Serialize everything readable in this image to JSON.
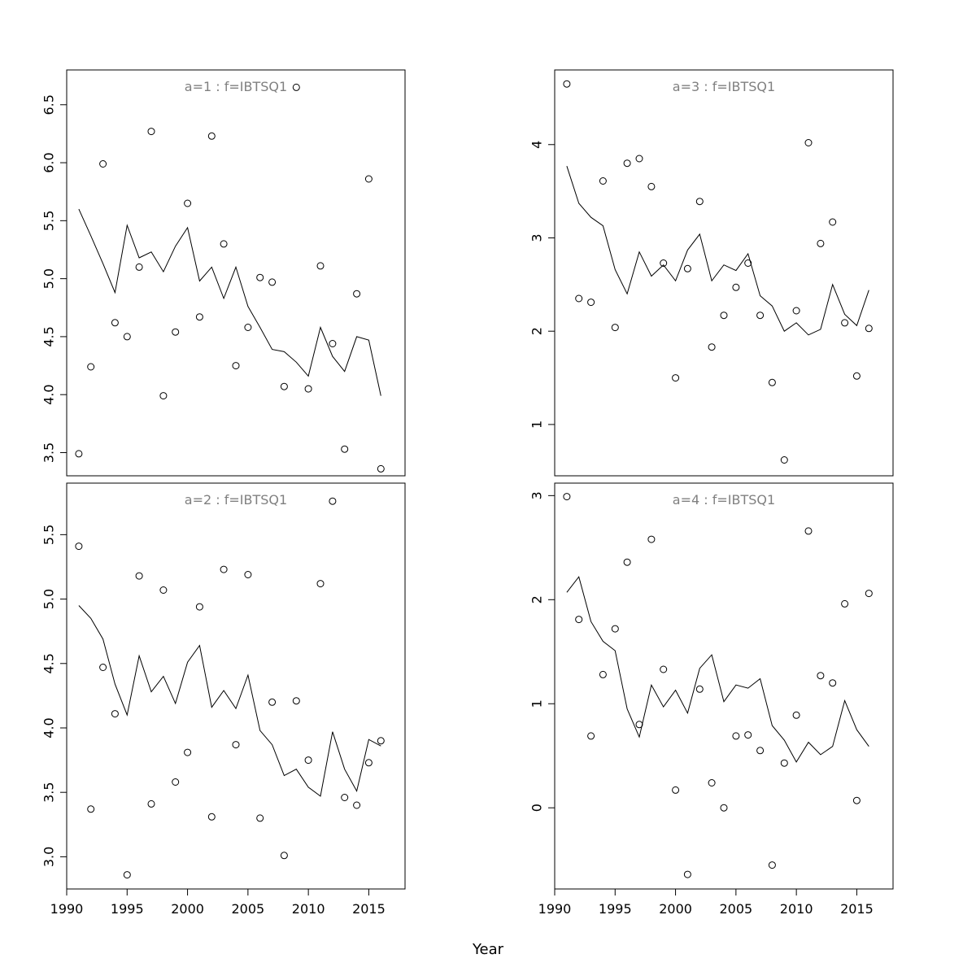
{
  "chart_data": {
    "type": "scatter",
    "xlabel": "Year",
    "x": [
      1991,
      1992,
      1993,
      1994,
      1995,
      1996,
      1997,
      1998,
      1999,
      2000,
      2001,
      2002,
      2003,
      2004,
      2005,
      2006,
      2007,
      2008,
      2009,
      2010,
      2011,
      2012,
      2013,
      2014,
      2015,
      2016
    ],
    "xlim": [
      1990,
      2018
    ],
    "xticks": [
      "1990",
      "1995",
      "2000",
      "2005",
      "2010",
      "2015"
    ],
    "xtick_values": [
      1990,
      1995,
      2000,
      2005,
      2010,
      2015
    ],
    "panels": [
      {
        "title": "a=1  :  f=IBTSQ1",
        "ylim": [
          3.3,
          6.8
        ],
        "yticks": [
          "3.5",
          "4.0",
          "4.5",
          "5.0",
          "5.5",
          "6.0",
          "6.5"
        ],
        "ytick_values": [
          3.5,
          4.0,
          4.5,
          5.0,
          5.5,
          6.0,
          6.5
        ],
        "points": [
          3.49,
          4.24,
          5.99,
          4.62,
          4.5,
          5.1,
          6.27,
          3.99,
          4.54,
          5.65,
          4.67,
          6.23,
          5.3,
          4.25,
          4.58,
          5.01,
          4.97,
          4.07,
          6.65,
          4.05,
          5.11,
          4.44,
          3.53,
          4.87,
          5.86,
          3.36
        ],
        "line": [
          5.6,
          5.37,
          5.13,
          4.88,
          5.46,
          5.18,
          5.23,
          5.06,
          5.28,
          5.44,
          4.98,
          5.1,
          4.83,
          5.1,
          4.76,
          4.58,
          4.39,
          4.37,
          4.28,
          4.16,
          4.58,
          4.33,
          4.2,
          4.5,
          4.47,
          3.99
        ]
      },
      {
        "title": "a=2  :  f=IBTSQ1",
        "ylim": [
          2.75,
          5.9
        ],
        "yticks": [
          "3.0",
          "3.5",
          "4.0",
          "4.5",
          "5.0",
          "5.5"
        ],
        "ytick_values": [
          3.0,
          3.5,
          4.0,
          4.5,
          5.0,
          5.5
        ],
        "points": [
          5.41,
          3.37,
          4.47,
          4.11,
          2.86,
          5.18,
          3.41,
          5.07,
          3.58,
          3.81,
          4.94,
          3.31,
          5.23,
          3.87,
          5.19,
          3.3,
          4.2,
          3.01,
          4.21,
          3.75,
          5.12,
          5.76,
          3.46,
          3.4,
          3.73,
          3.9
        ],
        "line": [
          4.95,
          4.85,
          4.69,
          4.34,
          4.1,
          4.56,
          4.28,
          4.4,
          4.19,
          4.51,
          4.64,
          4.16,
          4.29,
          4.15,
          4.41,
          3.98,
          3.87,
          3.63,
          3.68,
          3.54,
          3.47,
          3.97,
          3.68,
          3.51,
          3.91,
          3.86
        ]
      },
      {
        "title": "a=3  :  f=IBTSQ1",
        "ylim": [
          0.45,
          4.8
        ],
        "yticks": [
          "1",
          "2",
          "3",
          "4"
        ],
        "ytick_values": [
          1,
          2,
          3,
          4
        ],
        "points": [
          4.65,
          2.35,
          2.31,
          3.61,
          2.04,
          3.8,
          3.85,
          3.55,
          2.73,
          1.5,
          2.67,
          3.39,
          1.83,
          2.17,
          2.47,
          2.73,
          2.17,
          1.45,
          0.62,
          2.22,
          4.02,
          2.94,
          3.17,
          2.09,
          1.52,
          2.03
        ],
        "line": [
          3.77,
          3.37,
          3.22,
          3.13,
          2.66,
          2.4,
          2.85,
          2.59,
          2.71,
          2.54,
          2.87,
          3.04,
          2.54,
          2.71,
          2.65,
          2.83,
          2.38,
          2.27,
          2.0,
          2.09,
          1.96,
          2.02,
          2.5,
          2.18,
          2.06,
          2.44
        ]
      },
      {
        "title": "a=4  :  f=IBTSQ1",
        "ylim": [
          -0.78,
          3.12
        ],
        "yticks": [
          "0",
          "1",
          "2",
          "3"
        ],
        "ytick_values": [
          0,
          1,
          2,
          3
        ],
        "points": [
          2.99,
          1.81,
          0.69,
          1.28,
          1.72,
          2.36,
          0.8,
          2.58,
          1.33,
          0.17,
          -0.64,
          1.14,
          0.24,
          0.0,
          0.69,
          0.7,
          0.55,
          -0.55,
          0.43,
          0.89,
          2.66,
          1.27,
          1.2,
          1.96,
          0.07,
          2.06
        ],
        "line": [
          2.07,
          2.22,
          1.79,
          1.6,
          1.51,
          0.95,
          0.68,
          1.18,
          0.97,
          1.13,
          0.91,
          1.34,
          1.47,
          1.02,
          1.18,
          1.15,
          1.24,
          0.79,
          0.65,
          0.44,
          0.63,
          0.51,
          0.59,
          1.03,
          0.75,
          0.59
        ]
      }
    ]
  }
}
